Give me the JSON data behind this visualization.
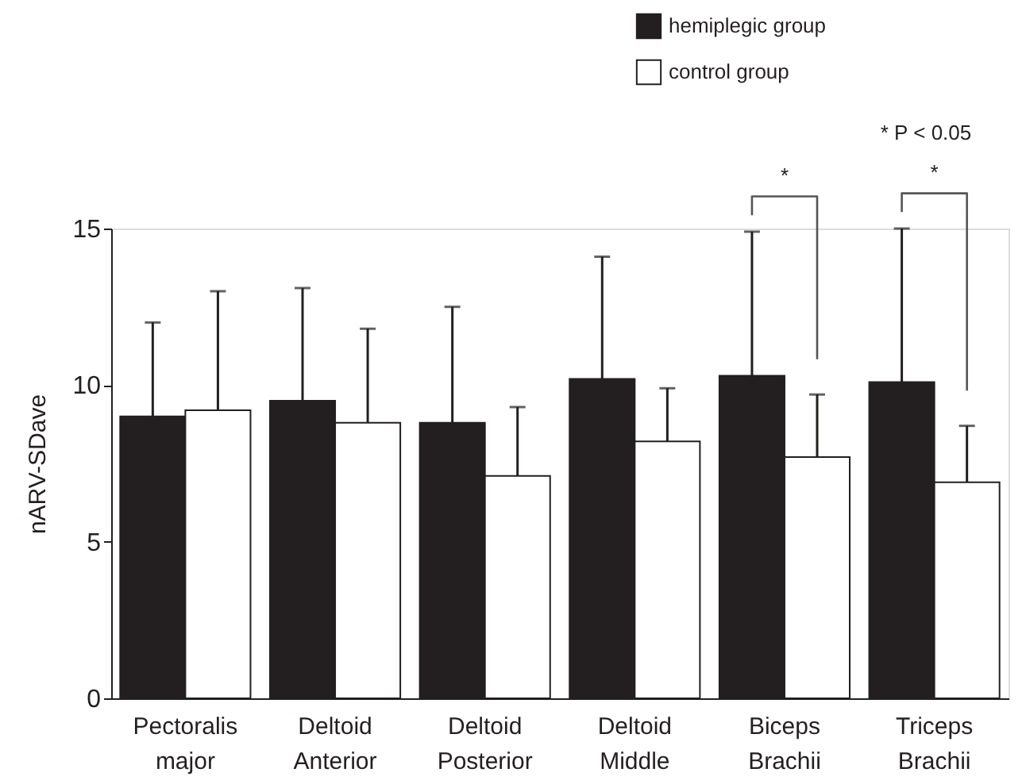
{
  "chart_data": {
    "type": "bar",
    "ylabel": "nARV-SDave",
    "categories": [
      "Pectoralis major",
      "Deltoid Anterior",
      "Deltoid Posterior",
      "Deltoid Middle",
      "Biceps Brachii",
      "Triceps Brachii"
    ],
    "series": [
      {
        "name": "hemiplegic  group",
        "color": "#231f20",
        "values": [
          9.0,
          9.5,
          8.8,
          10.2,
          10.3,
          10.1
        ],
        "errors": [
          [
            9.0,
            12.0
          ],
          [
            9.5,
            13.1
          ],
          [
            8.8,
            12.5
          ],
          [
            10.2,
            14.1
          ],
          [
            10.3,
            14.9
          ],
          [
            10.1,
            15.0
          ]
        ]
      },
      {
        "name": "control  group",
        "color": "#ffffff",
        "values": [
          9.2,
          8.8,
          7.1,
          8.2,
          7.7,
          6.9
        ],
        "errors": [
          [
            9.2,
            13.0
          ],
          [
            8.8,
            11.8
          ],
          [
            7.1,
            9.3
          ],
          [
            8.2,
            9.9
          ],
          [
            7.7,
            9.7
          ],
          [
            6.9,
            8.7
          ]
        ]
      }
    ],
    "ylim": [
      0,
      15
    ],
    "yticks": [
      0,
      5,
      10,
      15
    ],
    "grid": false,
    "legend": "top right",
    "annotations": [
      "* P < 0.05",
      "*",
      "*"
    ]
  }
}
